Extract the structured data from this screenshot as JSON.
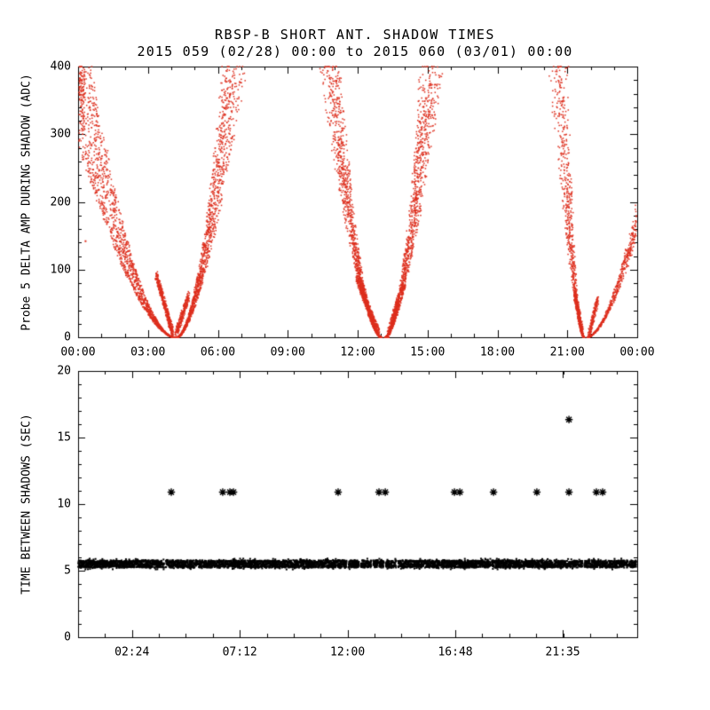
{
  "title": "RBSP-B SHORT ANT. SHADOW TIMES",
  "subtitle": "2015 059 (02/28) 00:00 to 2015 060 (03/01) 00:00",
  "colors": {
    "background": "#ffffff",
    "axis": "#000000",
    "top_points": "#dd2f1e",
    "bottom_points": "#000000"
  },
  "chart_data": [
    {
      "type": "scatter",
      "panel": "top",
      "ylabel": "Probe 5 DELTA AMP DURING SHADOW (ADC)",
      "xlabel": "",
      "x_range": [
        0,
        24
      ],
      "y_range": [
        0,
        400
      ],
      "x_ticks": [
        {
          "hour": 0,
          "label": "00:00"
        },
        {
          "hour": 3,
          "label": "03:00"
        },
        {
          "hour": 6,
          "label": "06:00"
        },
        {
          "hour": 9,
          "label": "09:00"
        },
        {
          "hour": 12,
          "label": "12:00"
        },
        {
          "hour": 15,
          "label": "15:00"
        },
        {
          "hour": 18,
          "label": "18:00"
        },
        {
          "hour": 21,
          "label": "21:00"
        },
        {
          "hour": 24,
          "label": "00:00"
        }
      ],
      "x_minor_step": 1,
      "y_ticks": [
        0,
        100,
        200,
        300,
        400
      ],
      "y_minor_step": 20,
      "point_color": "#dd2f1e",
      "shadow_events": [
        {
          "name": "shadow-1",
          "min_hour": 4.12,
          "arms": [
            {
              "t_bottom": 4.12,
              "t_top": 0.3,
              "n": 1600,
              "streaks": [
                0,
                0.45,
                1.0
              ]
            },
            {
              "t_bottom": 4.25,
              "t_top": 6.45,
              "n": 1400,
              "streaks": [
                0,
                0.18,
                0.5
              ]
            }
          ],
          "feet": [
            {
              "t1": 3.35,
              "v1": 92,
              "t2": 4.06,
              "v2": 6,
              "n": 450
            },
            {
              "t1": 4.18,
              "v1": 2,
              "t2": 4.75,
              "v2": 62,
              "n": 260
            }
          ]
        },
        {
          "name": "shadow-2",
          "min_hour": 13.1,
          "arms": [
            {
              "t_bottom": 13.02,
              "t_top": 11.0,
              "n": 1300,
              "streaks": [
                0,
                0.15,
                0.38
              ]
            },
            {
              "t_bottom": 13.18,
              "t_top": 14.95,
              "n": 1300,
              "streaks": [
                0,
                0.18,
                0.45
              ]
            }
          ],
          "feet": [
            {
              "t1": 11.95,
              "v1": 88,
              "t2": 12.9,
              "v2": 6,
              "n": 480
            },
            {
              "t1": 13.3,
              "v1": 2,
              "t2": 13.75,
              "v2": 58,
              "n": 240
            }
          ]
        },
        {
          "name": "shadow-3",
          "min_hour": 21.8,
          "arms": [
            {
              "t_bottom": 21.72,
              "t_top": 20.78,
              "n": 800,
              "streaks": [
                0,
                0.12,
                0.3
              ]
            },
            {
              "t_bottom": 21.85,
              "t_top": 25.2,
              "n": 900,
              "streaks": [
                0,
                0.15,
                0.35
              ]
            }
          ],
          "feet": [
            {
              "t1": 21.3,
              "v1": 68,
              "t2": 21.66,
              "v2": 5,
              "n": 240
            },
            {
              "t1": 21.92,
              "v1": 2,
              "t2": 22.3,
              "v2": 55,
              "n": 200
            }
          ]
        }
      ],
      "stray_points": [
        {
          "hour": 0.32,
          "adc": 142
        }
      ]
    },
    {
      "type": "scatter",
      "panel": "bottom",
      "ylabel": "TIME BETWEEN SHADOWS (SEC)",
      "xlabel": "",
      "x_range": [
        0,
        24.9
      ],
      "y_range": [
        0,
        20
      ],
      "x_ticks": [
        {
          "hour": 2.4,
          "label": "02:24"
        },
        {
          "hour": 7.2,
          "label": "07:12"
        },
        {
          "hour": 12.0,
          "label": "12:00"
        },
        {
          "hour": 16.8,
          "label": "16:48"
        },
        {
          "hour": 21.583,
          "label": "21:35"
        }
      ],
      "x_minor_step": 1.2,
      "y_ticks": [
        0,
        5,
        10,
        15,
        20
      ],
      "y_minor_step": 1,
      "point_color": "#000000",
      "band": {
        "sec_center": 5.5,
        "sec_spread": 0.55,
        "start_hour": 0,
        "end_hour": 24.85,
        "n": 5200,
        "gap_hours": [
          3.87,
          12.0,
          12.55,
          13.1,
          13.65,
          14.2,
          22.5
        ],
        "gap_half_width_hour": 0.04
      },
      "outliers": [
        {
          "hour": 4.15,
          "sec": 10.9
        },
        {
          "hour": 6.44,
          "sec": 10.9
        },
        {
          "hour": 6.76,
          "sec": 10.9
        },
        {
          "hour": 6.92,
          "sec": 10.9
        },
        {
          "hour": 11.58,
          "sec": 10.9
        },
        {
          "hour": 13.4,
          "sec": 10.9
        },
        {
          "hour": 13.68,
          "sec": 10.9
        },
        {
          "hour": 16.76,
          "sec": 10.9
        },
        {
          "hour": 17.0,
          "sec": 10.9
        },
        {
          "hour": 18.5,
          "sec": 10.9
        },
        {
          "hour": 20.43,
          "sec": 10.9
        },
        {
          "hour": 21.86,
          "sec": 10.9
        },
        {
          "hour": 21.86,
          "sec": 16.35
        },
        {
          "hour": 23.08,
          "sec": 10.9
        },
        {
          "hour": 23.36,
          "sec": 10.9
        }
      ]
    }
  ]
}
